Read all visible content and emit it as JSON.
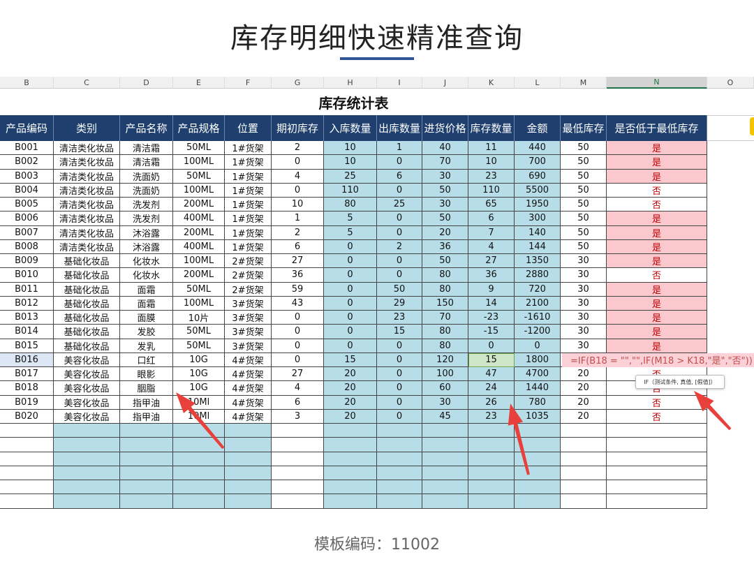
{
  "title": "库存明细快速精准查询",
  "sheet": {
    "columns": [
      "B",
      "C",
      "D",
      "E",
      "F",
      "G",
      "H",
      "I",
      "J",
      "K",
      "L",
      "M",
      "N",
      "O"
    ],
    "title": "库存统计表",
    "headers": [
      "产品编码",
      "类别",
      "产品名称",
      "产品规格",
      "位置",
      "期初库存",
      "入库数量",
      "出库数量",
      "进货价格",
      "库存数量",
      "金额",
      "最低库存",
      "是否低于最低库存"
    ],
    "rows": [
      [
        "B001",
        "清洁类化妆品",
        "清洁霜",
        "50ML",
        "1#货架",
        2,
        10,
        1,
        40,
        11,
        440,
        50,
        "是"
      ],
      [
        "B002",
        "清洁类化妆品",
        "清洁霜",
        "100ML",
        "1#货架",
        0,
        10,
        0,
        70,
        10,
        700,
        50,
        "是"
      ],
      [
        "B003",
        "清洁类化妆品",
        "洗面奶",
        "50ML",
        "1#货架",
        4,
        25,
        6,
        30,
        23,
        690,
        50,
        "是"
      ],
      [
        "B004",
        "清洁类化妆品",
        "洗面奶",
        "100ML",
        "1#货架",
        0,
        110,
        0,
        50,
        110,
        5500,
        50,
        "否"
      ],
      [
        "B005",
        "清洁类化妆品",
        "洗发剂",
        "200ML",
        "1#货架",
        10,
        80,
        25,
        30,
        65,
        1950,
        50,
        "否"
      ],
      [
        "B006",
        "清洁类化妆品",
        "洗发剂",
        "400ML",
        "1#货架",
        1,
        5,
        0,
        50,
        6,
        300,
        50,
        "是"
      ],
      [
        "B007",
        "清洁类化妆品",
        "沐浴露",
        "200ML",
        "1#货架",
        2,
        5,
        0,
        20,
        7,
        140,
        50,
        "是"
      ],
      [
        "B008",
        "清洁类化妆品",
        "沐浴露",
        "400ML",
        "1#货架",
        6,
        0,
        2,
        36,
        4,
        144,
        50,
        "是"
      ],
      [
        "B009",
        "基础化妆品",
        "化妆水",
        "100ML",
        "2#货架",
        27,
        0,
        0,
        50,
        27,
        1350,
        30,
        "是"
      ],
      [
        "B010",
        "基础化妆品",
        "化妆水",
        "200ML",
        "2#货架",
        36,
        0,
        0,
        80,
        36,
        2880,
        30,
        "否"
      ],
      [
        "B011",
        "基础化妆品",
        "面霜",
        "50ML",
        "2#货架",
        59,
        0,
        50,
        80,
        9,
        720,
        30,
        "是"
      ],
      [
        "B012",
        "基础化妆品",
        "面霜",
        "100ML",
        "3#货架",
        43,
        0,
        29,
        150,
        14,
        2100,
        30,
        "是"
      ],
      [
        "B013",
        "基础化妆品",
        "面膜",
        "10片",
        "3#货架",
        0,
        0,
        23,
        70,
        -23,
        -1610,
        30,
        "是"
      ],
      [
        "B014",
        "基础化妆品",
        "发胶",
        "50ML",
        "3#货架",
        0,
        0,
        15,
        80,
        -15,
        -1200,
        30,
        "是"
      ],
      [
        "B015",
        "基础化妆品",
        "发乳",
        "50ML",
        "3#货架",
        0,
        0,
        0,
        80,
        0,
        0,
        30,
        "是"
      ],
      [
        "B016",
        "美容化妆品",
        "口红",
        "10G",
        "4#货架",
        0,
        15,
        0,
        120,
        15,
        1800,
        null,
        "=IF(B18 = \"\",\"\",IF(M18 > K18,\"是\",\"否\"))"
      ],
      [
        "B017",
        "美容化妆品",
        "眼影",
        "10G",
        "4#货架",
        27,
        20,
        0,
        100,
        47,
        4700,
        20,
        "否"
      ],
      [
        "B018",
        "美容化妆品",
        "胭脂",
        "10G",
        "4#货架",
        4,
        20,
        0,
        60,
        24,
        1440,
        20,
        "否"
      ],
      [
        "B019",
        "美容化妆品",
        "指甲油",
        "10Ml",
        "4#货架",
        6,
        20,
        0,
        30,
        26,
        780,
        20,
        "否"
      ],
      [
        "B020",
        "美容化妆品",
        "指甲油",
        "10Ml",
        "4#货架",
        3,
        20,
        0,
        45,
        23,
        1035,
        20,
        "否"
      ]
    ]
  },
  "tooltip": "IF（测试条件, 真值, [假值]）",
  "footer": "模板编码：11002"
}
